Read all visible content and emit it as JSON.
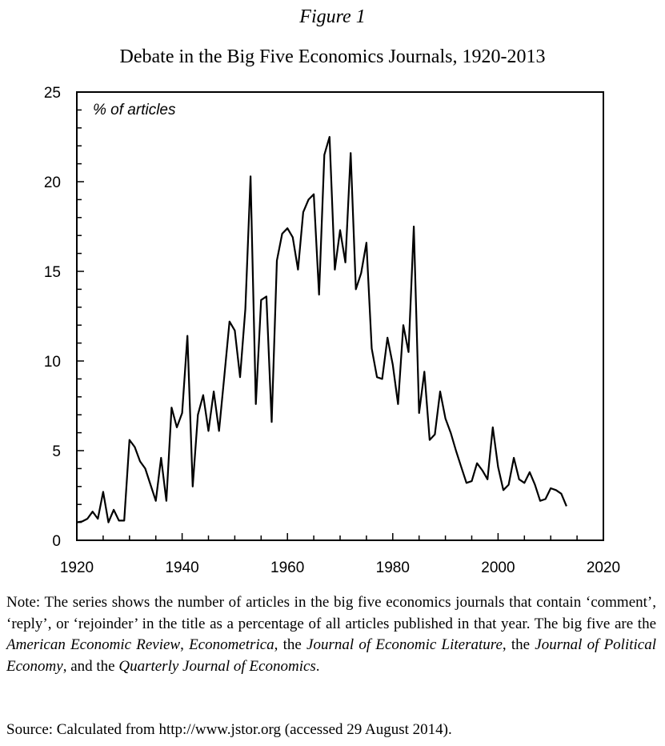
{
  "figure": {
    "label": "Figure 1",
    "title": "Debate in the Big Five Economics Journals, 1920-2013"
  },
  "chart_data": {
    "type": "line",
    "title": "Debate in the Big Five Economics Journals, 1920-2013",
    "ylabel": "% of articles",
    "xlabel": "",
    "xlim": [
      1920,
      2020
    ],
    "ylim": [
      0,
      25
    ],
    "x_ticks": [
      1920,
      1940,
      1960,
      1980,
      2000,
      2020
    ],
    "y_ticks": [
      0,
      5,
      10,
      15,
      20,
      25
    ],
    "x_minor_step": 5,
    "y_minor_step": 1,
    "grid": false,
    "line_color": "#000000",
    "series": [
      {
        "x": [
          1920,
          1921,
          1922,
          1923,
          1924,
          1925,
          1926,
          1927,
          1928,
          1929,
          1930,
          1931,
          1932,
          1933,
          1934,
          1935,
          1936,
          1937,
          1938,
          1939,
          1940,
          1941,
          1942,
          1943,
          1944,
          1945,
          1946,
          1947,
          1948,
          1949,
          1950,
          1951,
          1952,
          1953,
          1954,
          1955,
          1956,
          1957,
          1958,
          1959,
          1960,
          1961,
          1962,
          1963,
          1964,
          1965,
          1966,
          1967,
          1968,
          1969,
          1970,
          1971,
          1972,
          1973,
          1974,
          1975,
          1976,
          1977,
          1978,
          1979,
          1980,
          1981,
          1982,
          1983,
          1984,
          1985,
          1986,
          1987,
          1988,
          1989,
          1990,
          1991,
          1992,
          1993,
          1994,
          1995,
          1996,
          1997,
          1998,
          1999,
          2000,
          2001,
          2002,
          2003,
          2004,
          2005,
          2006,
          2007,
          2008,
          2009,
          2010,
          2011,
          2012,
          2013
        ],
        "y": [
          1.0,
          1.05,
          1.2,
          1.6,
          1.2,
          2.7,
          1.0,
          1.7,
          1.1,
          1.1,
          5.6,
          5.2,
          4.4,
          4.0,
          3.1,
          2.2,
          4.6,
          2.2,
          7.4,
          6.3,
          7.1,
          11.4,
          3.0,
          7.0,
          8.1,
          6.1,
          8.3,
          6.1,
          9.1,
          12.2,
          11.7,
          9.1,
          12.9,
          20.3,
          7.6,
          13.4,
          13.6,
          6.6,
          15.6,
          17.1,
          17.4,
          16.9,
          15.1,
          18.3,
          19.0,
          19.3,
          13.7,
          21.5,
          22.5,
          15.1,
          17.3,
          15.5,
          21.6,
          14.0,
          14.9,
          16.6,
          10.7,
          9.1,
          9.0,
          11.3,
          9.8,
          7.6,
          12.0,
          10.5,
          17.5,
          7.1,
          9.4,
          5.6,
          5.9,
          8.3,
          6.8,
          6.0,
          5.0,
          4.1,
          3.2,
          3.3,
          4.3,
          3.9,
          3.4,
          6.3,
          4.1,
          2.8,
          3.1,
          4.6,
          3.4,
          3.2,
          3.8,
          3.1,
          2.2,
          2.3,
          2.9,
          2.8,
          2.6,
          1.9
        ]
      }
    ]
  },
  "note": {
    "prefix": "Note: The series shows the number of articles in the big five economics journals that contain ‘comment’, ‘reply’, or ‘rejoinder’ in the title as a percentage of all arti­cles published in that year. The big five are the ",
    "journal1": "American Economic Review",
    "sep1": ", ",
    "journal2": "Econo­metrica",
    "sep2": ", the ",
    "journal3": "Journal of Economic Literature",
    "sep3": ", the ",
    "journal4": "Journal of Political Economy",
    "sep4": ", and the ",
    "journal5": "Quarterly Journal of Economics",
    "suffix": "."
  },
  "source": "Source: Calculated from http://www.jstor.org (accessed 29 August 2014)."
}
